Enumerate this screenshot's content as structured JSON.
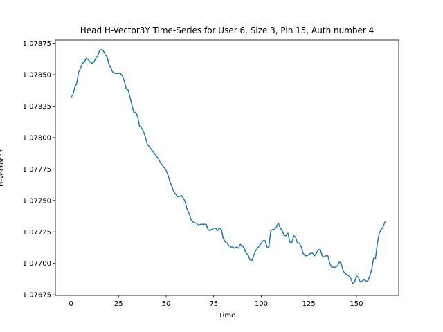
{
  "chart_data": {
    "type": "line",
    "title": "Head H-Vector3Y Time-Series for User 6, Size 3, Pin 15, Auth number 4",
    "xlabel": "Time",
    "ylabel": "H-Vector3Y",
    "xlim": [
      -8.2,
      172.2
    ],
    "ylim": [
      1.076745,
      1.078775
    ],
    "xticks": [
      0,
      25,
      50,
      75,
      100,
      125,
      150
    ],
    "xtick_labels": [
      "0",
      "25",
      "50",
      "75",
      "100",
      "125",
      "150"
    ],
    "yticks": [
      1.07675,
      1.077,
      1.07725,
      1.0775,
      1.07775,
      1.078,
      1.07825,
      1.0785,
      1.07875
    ],
    "ytick_labels": [
      "1.07675",
      "1.07700",
      "1.07725",
      "1.07750",
      "1.07775",
      "1.07800",
      "1.07825",
      "1.07850",
      "1.07875"
    ],
    "grid": false,
    "legend": "none",
    "series": [
      {
        "color": "#1f77b4",
        "points": [
          [
            0,
            1.07832
          ],
          [
            1,
            1.07834
          ],
          [
            2,
            1.0784
          ],
          [
            3,
            1.07843
          ],
          [
            4,
            1.07852
          ],
          [
            5,
            1.07855
          ],
          [
            6,
            1.07859
          ],
          [
            7,
            1.0786
          ],
          [
            8,
            1.07863
          ],
          [
            9,
            1.07862
          ],
          [
            10,
            1.0786
          ],
          [
            11,
            1.07859
          ],
          [
            12,
            1.0786
          ],
          [
            13,
            1.07863
          ],
          [
            14,
            1.07865
          ],
          [
            15,
            1.07869
          ],
          [
            16,
            1.0787
          ],
          [
            17,
            1.07869
          ],
          [
            18,
            1.07866
          ],
          [
            19,
            1.07864
          ],
          [
            20,
            1.07858
          ],
          [
            21,
            1.07855
          ],
          [
            22,
            1.07852
          ],
          [
            23,
            1.07851
          ],
          [
            24,
            1.07851
          ],
          [
            25,
            1.07851
          ],
          [
            26,
            1.07851
          ],
          [
            27,
            1.07849
          ],
          [
            28,
            1.07845
          ],
          [
            29,
            1.07839
          ],
          [
            30,
            1.07838
          ],
          [
            31,
            1.07832
          ],
          [
            32,
            1.07826
          ],
          [
            33,
            1.0782
          ],
          [
            34,
            1.0782
          ],
          [
            35,
            1.07817
          ],
          [
            36,
            1.07809
          ],
          [
            37,
            1.07808
          ],
          [
            38,
            1.07805
          ],
          [
            39,
            1.07801
          ],
          [
            40,
            1.07795
          ],
          [
            41,
            1.07793
          ],
          [
            42,
            1.07791
          ],
          [
            43,
            1.07789
          ],
          [
            44,
            1.07787
          ],
          [
            45,
            1.07785
          ],
          [
            46,
            1.07783
          ],
          [
            47,
            1.0778
          ],
          [
            48,
            1.07778
          ],
          [
            49,
            1.07776
          ],
          [
            50,
            1.07774
          ],
          [
            51,
            1.0777
          ],
          [
            52,
            1.07765
          ],
          [
            53,
            1.07761
          ],
          [
            54,
            1.07757
          ],
          [
            55,
            1.07755
          ],
          [
            56,
            1.07753
          ],
          [
            57,
            1.07753
          ],
          [
            58,
            1.07754
          ],
          [
            59,
            1.07752
          ],
          [
            60,
            1.07749
          ],
          [
            61,
            1.07743
          ],
          [
            62,
            1.0774
          ],
          [
            63,
            1.07735
          ],
          [
            64,
            1.07733
          ],
          [
            65,
            1.07732
          ],
          [
            66,
            1.07732
          ],
          [
            67,
            1.0773
          ],
          [
            68,
            1.07731
          ],
          [
            69,
            1.07731
          ],
          [
            70,
            1.07731
          ],
          [
            71,
            1.07731
          ],
          [
            72,
            1.07727
          ],
          [
            73,
            1.07726
          ],
          [
            74,
            1.07727
          ],
          [
            75,
            1.07728
          ],
          [
            76,
            1.07728
          ],
          [
            77,
            1.07726
          ],
          [
            78,
            1.07728
          ],
          [
            79,
            1.07727
          ],
          [
            80,
            1.0772
          ],
          [
            81,
            1.07717
          ],
          [
            82,
            1.07716
          ],
          [
            83,
            1.07714
          ],
          [
            84,
            1.07713
          ],
          [
            85,
            1.07713
          ],
          [
            86,
            1.07712
          ],
          [
            87,
            1.07713
          ],
          [
            88,
            1.07712
          ],
          [
            89,
            1.07715
          ],
          [
            90,
            1.07714
          ],
          [
            91,
            1.07712
          ],
          [
            92,
            1.07708
          ],
          [
            93,
            1.07707
          ],
          [
            94,
            1.07703
          ],
          [
            95,
            1.07702
          ],
          [
            96,
            1.07706
          ],
          [
            97,
            1.0771
          ],
          [
            98,
            1.07712
          ],
          [
            99,
            1.07714
          ],
          [
            100,
            1.07716
          ],
          [
            101,
            1.07718
          ],
          [
            102,
            1.07718
          ],
          [
            103,
            1.07713
          ],
          [
            104,
            1.07713
          ],
          [
            105,
            1.07726
          ],
          [
            106,
            1.07727
          ],
          [
            107,
            1.07727
          ],
          [
            108,
            1.07729
          ],
          [
            109,
            1.07732
          ],
          [
            110,
            1.07728
          ],
          [
            111,
            1.07726
          ],
          [
            112,
            1.07722
          ],
          [
            113,
            1.07722
          ],
          [
            114,
            1.07724
          ],
          [
            115,
            1.07717
          ],
          [
            116,
            1.07716
          ],
          [
            117,
            1.07722
          ],
          [
            118,
            1.07721
          ],
          [
            119,
            1.07716
          ],
          [
            120,
            1.07716
          ],
          [
            121,
            1.07713
          ],
          [
            122,
            1.07708
          ],
          [
            123,
            1.07706
          ],
          [
            124,
            1.07706
          ],
          [
            125,
            1.07707
          ],
          [
            126,
            1.07708
          ],
          [
            127,
            1.07708
          ],
          [
            128,
            1.07706
          ],
          [
            129,
            1.07708
          ],
          [
            130,
            1.07711
          ],
          [
            131,
            1.07711
          ],
          [
            132,
            1.07706
          ],
          [
            133,
            1.07705
          ],
          [
            134,
            1.07706
          ],
          [
            135,
            1.07706
          ],
          [
            136,
            1.077
          ],
          [
            137,
            1.07697
          ],
          [
            138,
            1.07697
          ],
          [
            139,
            1.07697
          ],
          [
            140,
            1.07698
          ],
          [
            141,
            1.07701
          ],
          [
            142,
            1.077
          ],
          [
            143,
            1.07694
          ],
          [
            144,
            1.07692
          ],
          [
            145,
            1.07691
          ],
          [
            146,
            1.0769
          ],
          [
            147,
            1.07688
          ],
          [
            148,
            1.07684
          ],
          [
            149,
            1.07685
          ],
          [
            150,
            1.0769
          ],
          [
            151,
            1.07689
          ],
          [
            152,
            1.07685
          ],
          [
            153,
            1.07686
          ],
          [
            154,
            1.07687
          ],
          [
            155,
            1.07686
          ],
          [
            156,
            1.07686
          ],
          [
            157,
            1.0769
          ],
          [
            158,
            1.07695
          ],
          [
            159,
            1.07704
          ],
          [
            160,
            1.07704
          ],
          [
            161,
            1.07716
          ],
          [
            162,
            1.07724
          ],
          [
            163,
            1.07727
          ],
          [
            164,
            1.07729
          ],
          [
            165,
            1.07733
          ]
        ]
      }
    ]
  }
}
